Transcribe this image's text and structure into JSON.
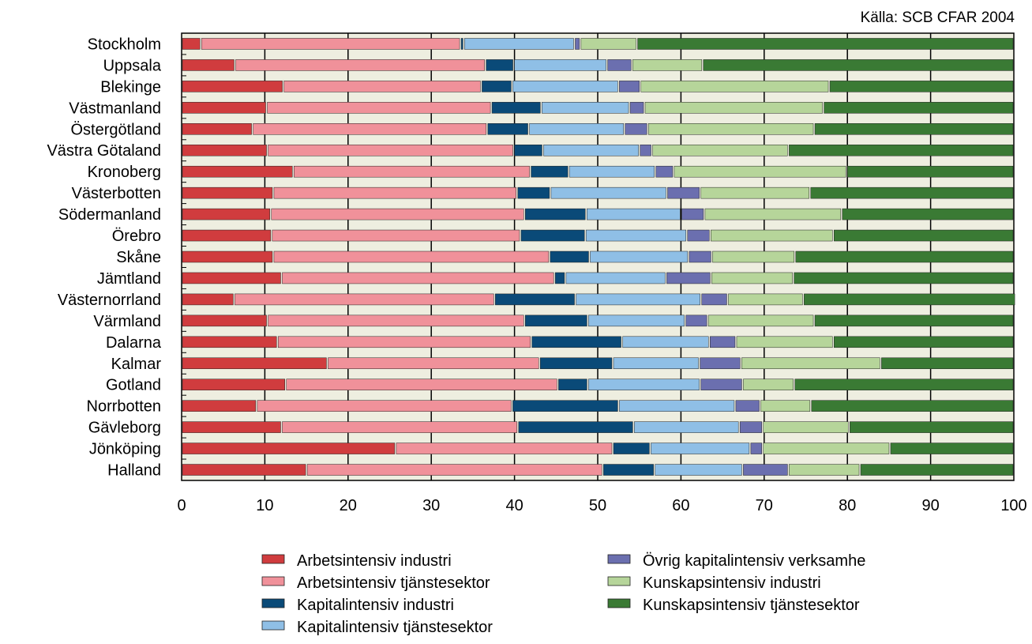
{
  "chart_data": {
    "type": "bar",
    "orientation": "horizontal",
    "stacked": true,
    "source": "Källa: SCB CFAR 2004",
    "xlim": [
      0,
      100
    ],
    "xticks": [
      "0",
      "10",
      "20",
      "30",
      "40",
      "50",
      "60",
      "70",
      "80",
      "90",
      "100"
    ],
    "grid": true,
    "legend_position": "bottom",
    "categories": [
      "Stockholm",
      "Uppsala",
      "Blekinge",
      "Västmanland",
      "Östergötland",
      "Västra Götaland",
      "Kronoberg",
      "Västerbotten",
      "Södermanland",
      "Örebro",
      "Skåne",
      "Jämtland",
      "Västernorrland",
      "Värmland",
      "Dalarna",
      "Kalmar",
      "Gotland",
      "Norrbotten",
      "Gävleborg",
      "Jönköping",
      "Halland"
    ],
    "series": [
      {
        "name": "Arbetsintensiv industri",
        "color": "#d03c3e",
        "values": [
          2.3,
          6.4,
          12.2,
          10.2,
          8.5,
          10.3,
          13.4,
          11.0,
          10.7,
          10.8,
          11.0,
          12.0,
          6.3,
          10.3,
          11.5,
          17.5,
          12.5,
          9.0,
          12.0,
          25.7,
          15.0
        ]
      },
      {
        "name": "Arbetsintensiv tjänstesektor",
        "color": "#f0919a",
        "values": [
          31.2,
          30.1,
          23.8,
          27.0,
          28.2,
          29.6,
          28.5,
          29.3,
          30.5,
          29.9,
          33.2,
          32.8,
          31.3,
          30.9,
          30.5,
          25.5,
          32.7,
          30.7,
          28.4,
          26.1,
          35.6
        ]
      },
      {
        "name": "Kapitalintensiv industri",
        "color": "#0a4a78",
        "values": [
          0.4,
          3.4,
          3.7,
          6.0,
          5.0,
          3.5,
          4.6,
          4.0,
          7.4,
          7.8,
          4.8,
          1.3,
          9.7,
          7.6,
          10.9,
          8.8,
          3.6,
          12.8,
          13.9,
          4.5,
          6.2
        ]
      },
      {
        "name": "Kapitalintensiv tjänstesektor",
        "color": "#8fbfe6",
        "values": [
          13.3,
          11.2,
          12.8,
          10.6,
          11.5,
          11.6,
          10.4,
          14.0,
          11.4,
          12.2,
          11.9,
          12.1,
          15.1,
          11.7,
          10.5,
          10.4,
          13.5,
          14.0,
          12.7,
          12.0,
          10.6
        ]
      },
      {
        "name": "Övrig kapitalintensiv verksamhe",
        "color": "#6b6faf",
        "values": [
          0.7,
          3.0,
          2.6,
          1.8,
          2.8,
          1.5,
          2.2,
          4.0,
          2.8,
          2.8,
          2.8,
          5.4,
          3.2,
          2.7,
          3.2,
          5.0,
          5.1,
          3.0,
          2.8,
          1.5,
          5.5
        ]
      },
      {
        "name": "Kunskapsintensiv industri",
        "color": "#b6d59a",
        "values": [
          6.8,
          8.5,
          22.7,
          21.5,
          20.0,
          16.4,
          20.8,
          13.2,
          16.5,
          14.8,
          10.0,
          9.9,
          9.1,
          12.8,
          11.7,
          16.8,
          6.2,
          6.1,
          10.4,
          15.3,
          8.6
        ]
      },
      {
        "name": "Kunskapsintensiv tjänstesektor",
        "color": "#3a7a34",
        "values": [
          45.3,
          37.4,
          22.2,
          22.9,
          24.0,
          27.1,
          20.1,
          24.5,
          20.7,
          21.7,
          26.3,
          26.5,
          25.5,
          24.0,
          21.7,
          16.0,
          26.4,
          24.4,
          19.8,
          14.9,
          18.5
        ]
      }
    ]
  }
}
